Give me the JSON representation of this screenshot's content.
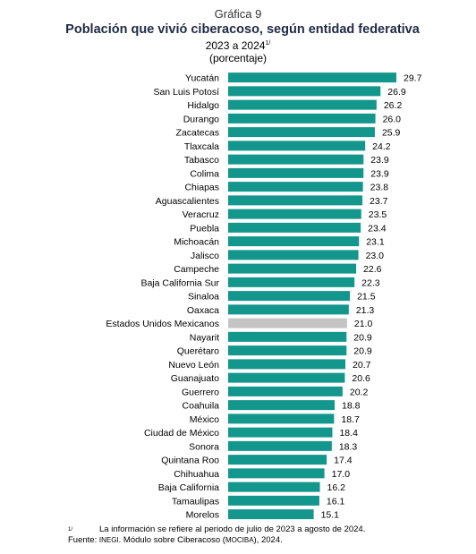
{
  "header": {
    "kicker": "Gráfica 9",
    "title": "Población que vivió ciberacoso, según entidad federativa",
    "subtitle": "2023 a 2024",
    "subtitle_mark": "1/",
    "units": "(porcentaje)"
  },
  "footer": {
    "note_mark": "1/",
    "note": "La información se refiere al periodo de julio de 2023 a agosto de 2024.",
    "source_label": "Fuente: ",
    "source_org": "INEGI",
    "source_mid": ". Módulo sobre Ciberacoso (",
    "source_abbr": "MOCIBA",
    "source_end": "), 2024."
  },
  "colors": {
    "bar": "#13968c",
    "national": "#c4c4c4"
  },
  "chart_data": {
    "type": "bar",
    "orientation": "horizontal",
    "title": "Población que vivió ciberacoso, según entidad federativa",
    "categories": [
      "Yucatán",
      "San Luis Potosí",
      "Hidalgo",
      "Durango",
      "Zacatecas",
      "Tlaxcala",
      "Tabasco",
      "Colima",
      "Chiapas",
      "Aguascalientes",
      "Veracruz",
      "Puebla",
      "Michoacán",
      "Jalisco",
      "Campeche",
      "Baja California Sur",
      "Sinaloa",
      "Oaxaca",
      "Estados Unidos Mexicanos",
      "Nayarit",
      "Querétaro",
      "Nuevo León",
      "Guanajuato",
      "Guerrero",
      "Coahuila",
      "México",
      "Ciudad de México",
      "Sonora",
      "Quintana Roo",
      "Chihuahua",
      "Baja California",
      "Tamaulipas",
      "Morelos"
    ],
    "values": [
      29.7,
      26.9,
      26.2,
      26.0,
      25.9,
      24.2,
      23.9,
      23.9,
      23.8,
      23.7,
      23.5,
      23.4,
      23.1,
      23.0,
      22.6,
      22.3,
      21.5,
      21.3,
      21.0,
      20.9,
      20.9,
      20.7,
      20.6,
      20.2,
      18.8,
      18.7,
      18.4,
      18.3,
      17.4,
      17.0,
      16.2,
      16.1,
      15.1
    ],
    "value_labels": [
      "29.7",
      "26.9",
      "26.2",
      "26.0",
      "25.9",
      "24.2",
      "23.9",
      "23.9",
      "23.8",
      "23.7",
      "23.5",
      "23.4",
      "23.1",
      "23.0",
      "22.6",
      "22.3",
      "21.5",
      "21.3",
      "21.0",
      "20.9",
      "20.9",
      "20.7",
      "20.6",
      "20.2",
      "18.8",
      "18.7",
      "18.4",
      "18.3",
      "17.4",
      "17.0",
      "16.2",
      "16.1",
      "15.1"
    ],
    "highlight": "Estados Unidos Mexicanos",
    "xlim": [
      0,
      29.7
    ],
    "grid": false,
    "legend": "none"
  }
}
